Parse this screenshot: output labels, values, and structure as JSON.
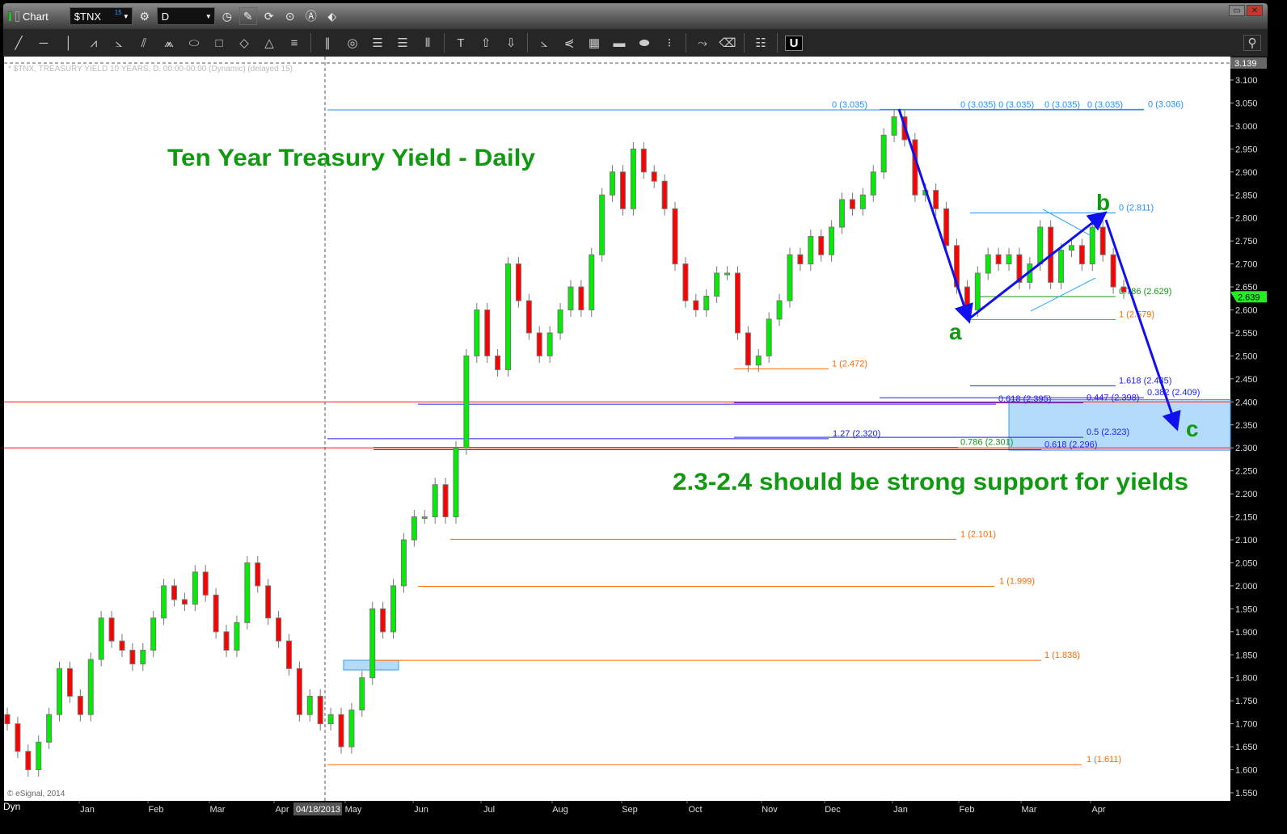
{
  "window": {
    "title": "Chart",
    "symbol": "$TNX",
    "symbol_badge": "15",
    "interval": "D"
  },
  "toolbar_icons": [
    "line-tool-icon",
    "horizontal-line-icon",
    "vertical-line-icon",
    "zigzag-icon",
    "fan-icon",
    "pitchfork-icon",
    "gann-fan-icon",
    "ellipse-icon",
    "rectangle-icon",
    "diamond-icon",
    "triangle-icon",
    "channel-icon",
    "parallel-lines-icon",
    "circles-icon",
    "fib-retracement-icon",
    "fib-extension-icon",
    "fib-time-icon",
    "text-icon",
    "arrow-up-icon",
    "arrow-down-icon",
    "speed-lines-icon",
    "speed-arcs-icon",
    "grid-icon",
    "mob-icon",
    "tj-icon",
    "pti-icon",
    "elliott-wave-icon",
    "eraser-icon",
    "comment-icon",
    "magnet-icon"
  ],
  "chart_data": {
    "type": "candlestick",
    "header": "* $TNX, TREASURY YIELD 10 YEARS, D, 00:00-00:00 (Dynamic) (delayed 15)",
    "title": "Ten Year Treasury Yield - Daily",
    "annotation": "2.3-2.4 should be strong support for yields",
    "copyright": "© eSignal, 2014",
    "ylim": [
      1.55,
      3.139
    ],
    "y_ticks": [
      "3.100",
      "3.050",
      "3.000",
      "2.950",
      "2.900",
      "2.850",
      "2.800",
      "2.750",
      "2.700",
      "2.650",
      "2.600",
      "2.550",
      "2.500",
      "2.450",
      "2.400",
      "2.350",
      "2.300",
      "2.250",
      "2.200",
      "2.150",
      "2.100",
      "2.050",
      "2.000",
      "1.950",
      "1.900",
      "1.850",
      "1.800",
      "1.750",
      "1.700",
      "1.650",
      "1.600",
      "1.550"
    ],
    "x_ticks": [
      "Jan",
      "Feb",
      "Mar",
      "Apr",
      "May",
      "Jun",
      "Jul",
      "Aug",
      "Sep",
      "Oct",
      "Nov",
      "Dec",
      "Jan",
      "Feb",
      "Mar",
      "Apr"
    ],
    "cursor_date": "04/18/2013",
    "cursor_price": "3.139",
    "last_price": "2.639",
    "axis_mode": "Dyn",
    "colors": {
      "up": "#00ee00",
      "down": "#ff0000",
      "fib_blue": "#1e90ff",
      "fib_orange": "#ff6a00",
      "wave": "#0000ff",
      "label_green": "#119911"
    },
    "closes": [
      1.7,
      1.64,
      1.6,
      1.66,
      1.72,
      1.82,
      1.76,
      1.72,
      1.84,
      1.93,
      1.88,
      1.86,
      1.83,
      1.86,
      1.93,
      2.0,
      1.97,
      1.96,
      2.03,
      1.98,
      1.9,
      1.86,
      1.92,
      2.05,
      2.0,
      1.93,
      1.88,
      1.82,
      1.72,
      1.76,
      1.7,
      1.72,
      1.65,
      1.73,
      1.8,
      1.95,
      1.9,
      2.0,
      2.1,
      2.15,
      2.15,
      2.22,
      2.15,
      2.3,
      2.5,
      2.6,
      2.5,
      2.47,
      2.7,
      2.62,
      2.55,
      2.5,
      2.55,
      2.6,
      2.65,
      2.6,
      2.72,
      2.85,
      2.9,
      2.82,
      2.95,
      2.9,
      2.88,
      2.82,
      2.7,
      2.62,
      2.6,
      2.63,
      2.68,
      2.68,
      2.55,
      2.48,
      2.5,
      2.58,
      2.62,
      2.72,
      2.7,
      2.76,
      2.72,
      2.78,
      2.84,
      2.82,
      2.85,
      2.9,
      2.98,
      3.02,
      2.97,
      2.85,
      2.86,
      2.82,
      2.74,
      2.65,
      2.6,
      2.68,
      2.72,
      2.7,
      2.72,
      2.66,
      2.7,
      2.78,
      2.66,
      2.73,
      2.74,
      2.7,
      2.78,
      2.72,
      2.65,
      2.639
    ],
    "levels": [
      {
        "label": "0 (3.035)",
        "value": 3.035,
        "color": "#1e90ff"
      },
      {
        "label": "0 (3.035) 0 (3.035)",
        "value": 3.035,
        "color": "#1e90ff"
      },
      {
        "label": "0 (3.035)",
        "value": 3.035,
        "color": "#1e90ff"
      },
      {
        "label": "0 (3.035)",
        "value": 3.035,
        "color": "#1e90ff"
      },
      {
        "label": "0 (3.036)",
        "value": 3.036,
        "color": "#1e90ff"
      },
      {
        "label": "0 (2.811)",
        "value": 2.811,
        "color": "#1e90ff"
      },
      {
        "label": "0.786 (2.629)",
        "value": 2.629,
        "color": "#119911"
      },
      {
        "label": "1 (2.579)",
        "value": 2.579,
        "color": "#ff6a00"
      },
      {
        "label": "1 (2.472)",
        "value": 2.472,
        "color": "#ff6a00"
      },
      {
        "label": "1.618 (2.435)",
        "value": 2.435,
        "color": "#2020ff"
      },
      {
        "label": "0.382 (2.409)",
        "value": 2.409,
        "color": "#2020ff"
      },
      {
        "label": "0.447 (2.398)",
        "value": 2.398,
        "color": "#2020ff"
      },
      {
        "label": "0.618 (2.395)",
        "value": 2.395,
        "color": "#2020ff"
      },
      {
        "label": "1.27 (2.320)",
        "value": 2.32,
        "color": "#2020ff"
      },
      {
        "label": "0.5 (2.323)",
        "value": 2.323,
        "color": "#2020ff"
      },
      {
        "label": "0.786 (2.301)",
        "value": 2.301,
        "color": "#119911"
      },
      {
        "label": "0.618 (2.296)",
        "value": 2.296,
        "color": "#2020ff"
      },
      {
        "label": "1 (2.101)",
        "value": 2.101,
        "color": "#ff6a00"
      },
      {
        "label": "1 (1.999)",
        "value": 1.999,
        "color": "#ff6a00"
      },
      {
        "label": "1 (1.838)",
        "value": 1.838,
        "color": "#ff6a00"
      },
      {
        "label": "1 (1.611)",
        "value": 1.611,
        "color": "#ff6a00"
      }
    ],
    "support_lines": [
      2.4,
      2.3
    ],
    "support_zone": [
      2.295,
      2.405
    ],
    "wave_labels": [
      "a",
      "b",
      "c"
    ]
  }
}
